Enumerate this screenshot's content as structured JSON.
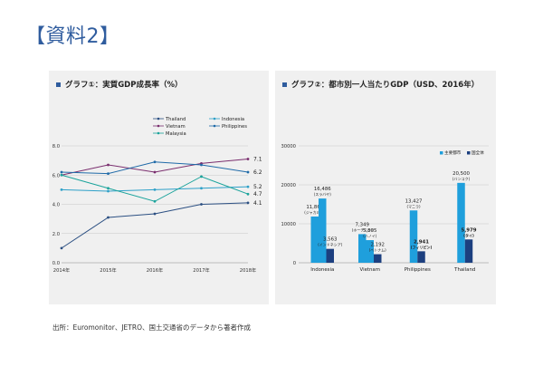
{
  "slide_title": "【資料2】",
  "source_note": "出所：Euromonitor、JETRO、国土交通省のデータから著者作成",
  "colors": {
    "title": "#2f5c9e",
    "bullet": "#2f5c9e"
  },
  "chart_data": [
    {
      "type": "line",
      "title": "グラフ①：実質GDP成長率（%）",
      "x": [
        "2014年",
        "2015年",
        "2016年",
        "2017年",
        "2018年"
      ],
      "ylim": [
        0,
        8
      ],
      "yticks": [
        "0.0",
        "2.0",
        "4.0",
        "6.0",
        "8.0"
      ],
      "legend_position": "top",
      "series": [
        {
          "name": "Thailand",
          "color": "#2b4f82",
          "values": [
            1.0,
            3.1,
            3.35,
            4.0,
            4.1
          ],
          "end_label": "4.1"
        },
        {
          "name": "Indonesia",
          "color": "#2ea0c8",
          "values": [
            5.0,
            4.9,
            5.0,
            5.1,
            5.2
          ],
          "end_label": "5.2"
        },
        {
          "name": "Vietnam",
          "color": "#7a2e6e",
          "values": [
            6.0,
            6.7,
            6.2,
            6.8,
            7.1
          ],
          "end_label": "7.1"
        },
        {
          "name": "Philippines",
          "color": "#1f6aa8",
          "values": [
            6.2,
            6.1,
            6.9,
            6.7,
            6.2
          ],
          "end_label": "6.2"
        },
        {
          "name": "Malaysia",
          "color": "#1aa39b",
          "values": [
            6.0,
            5.1,
            4.2,
            5.9,
            4.7
          ],
          "end_label": "4.7"
        }
      ]
    },
    {
      "type": "bar",
      "title": "グラフ②：都市別一人当たりGDP（USD、2016年）",
      "ylim": [
        0,
        30000
      ],
      "yticks": [
        "0",
        "10000",
        "20000",
        "30000"
      ],
      "legend_position": "top-right",
      "legend": [
        {
          "name": "主要都市",
          "color": "#1f9fdc"
        },
        {
          "name": "国全体",
          "color": "#1c3f7f"
        }
      ],
      "groups": [
        {
          "country": "Indonesia",
          "bars": [
            {
              "value": 11864,
              "label": "11,864",
              "city": "(ジャカルタ)",
              "color": "#1f9fdc"
            },
            {
              "value": 16486,
              "label": "16,486",
              "city": "(スラバヤ)",
              "color": "#1f9fdc"
            },
            {
              "value": 3563,
              "label": "3,563",
              "city": "(インドネシア)",
              "color": "#1c3f7f"
            }
          ]
        },
        {
          "country": "Vietnam",
          "bars": [
            {
              "value": 7349,
              "label": "7,349",
              "city": "(ホーチミン)",
              "color": "#1f9fdc"
            },
            {
              "value": 5805,
              "label": "5,805",
              "city": "(ハノイ)",
              "color": "#1f9fdc"
            },
            {
              "value": 2192,
              "label": "2,192",
              "city": "(ベトナム)",
              "color": "#1c3f7f"
            }
          ]
        },
        {
          "country": "Philippines",
          "bars": [
            {
              "value": 13427,
              "label": "13,427",
              "city": "(マニラ)",
              "color": "#1f9fdc"
            },
            {
              "value": 2941,
              "label": "2,941",
              "city": "(フィリピン)",
              "color": "#1c3f7f",
              "bold": true
            }
          ]
        },
        {
          "country": "Thailand",
          "bars": [
            {
              "value": 20500,
              "label": "20,500",
              "city": "(バンコク)",
              "color": "#1f9fdc"
            },
            {
              "value": 5979,
              "label": "5,979",
              "city": "(タイ)",
              "color": "#1c3f7f",
              "bold": true
            }
          ]
        }
      ]
    }
  ]
}
